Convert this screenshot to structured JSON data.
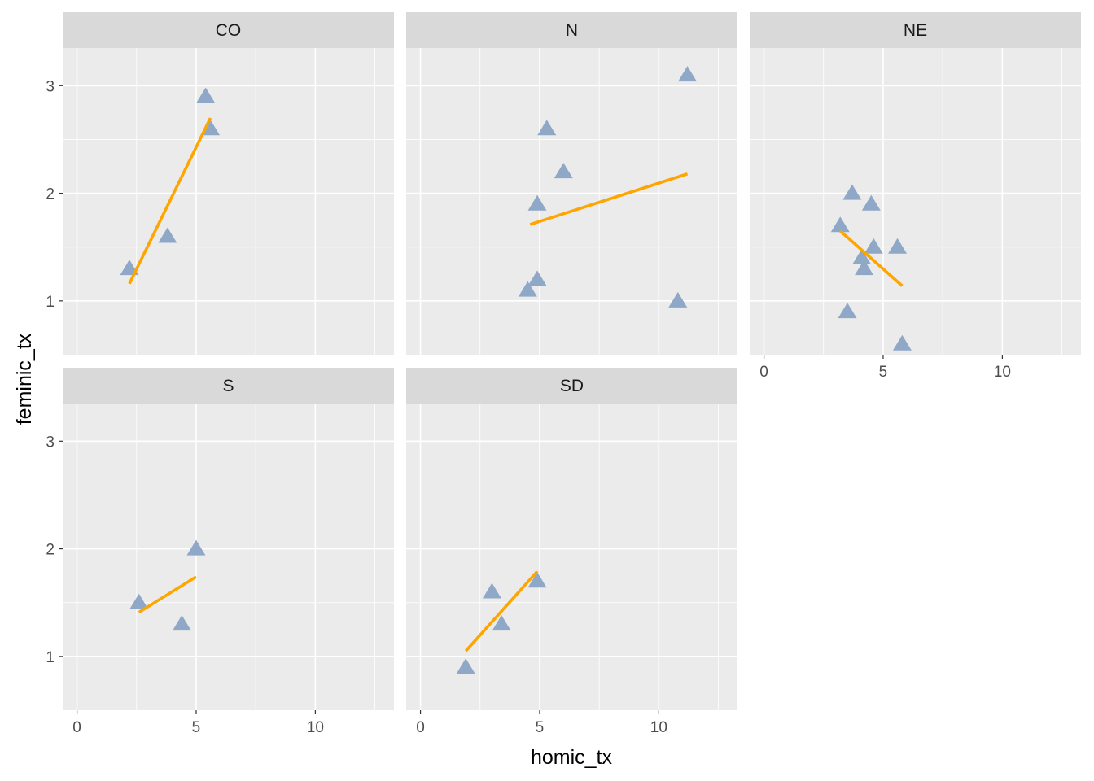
{
  "chart_data": {
    "type": "scatter",
    "title": "",
    "xlabel": "homic_tx",
    "ylabel": "feminic_tx",
    "xlim": [
      -0.6,
      13.3
    ],
    "ylim": [
      0.5,
      3.35
    ],
    "x_ticks": [
      0,
      5,
      10
    ],
    "y_ticks": [
      1,
      2,
      3
    ],
    "x_tick_labels": [
      "0",
      "5",
      "10"
    ],
    "y_tick_labels": [
      "1",
      "2",
      "3"
    ],
    "grid": true,
    "marker": "triangle",
    "point_color": "#8fa8c8",
    "line_color": "#ffa500",
    "panel_background": "#ebebeb",
    "strip_background": "#d9d9d9",
    "facets": [
      {
        "label": "CO",
        "points": [
          [
            2.2,
            1.3
          ],
          [
            3.8,
            1.6
          ],
          [
            5.4,
            2.9
          ],
          [
            5.6,
            2.6
          ]
        ],
        "fit": [
          [
            2.2,
            1.16
          ],
          [
            5.6,
            2.7
          ]
        ]
      },
      {
        "label": "N",
        "points": [
          [
            4.5,
            1.1
          ],
          [
            4.9,
            1.9
          ],
          [
            4.9,
            1.2
          ],
          [
            5.3,
            2.6
          ],
          [
            6.0,
            2.2
          ],
          [
            10.8,
            1.0
          ],
          [
            11.2,
            3.1
          ]
        ],
        "fit": [
          [
            4.6,
            1.71
          ],
          [
            11.2,
            2.18
          ]
        ]
      },
      {
        "label": "NE",
        "points": [
          [
            3.2,
            1.7
          ],
          [
            3.5,
            0.9
          ],
          [
            3.7,
            2.0
          ],
          [
            4.1,
            1.4
          ],
          [
            4.2,
            1.3
          ],
          [
            4.5,
            1.9
          ],
          [
            4.6,
            1.5
          ],
          [
            5.6,
            1.5
          ],
          [
            5.8,
            0.6
          ]
        ],
        "fit": [
          [
            3.2,
            1.65
          ],
          [
            5.8,
            1.14
          ]
        ]
      },
      {
        "label": "S",
        "points": [
          [
            2.6,
            1.5
          ],
          [
            4.4,
            1.3
          ],
          [
            5.0,
            2.0
          ]
        ],
        "fit": [
          [
            2.6,
            1.41
          ],
          [
            5.0,
            1.74
          ]
        ]
      },
      {
        "label": "SD",
        "points": [
          [
            1.9,
            0.9
          ],
          [
            3.0,
            1.6
          ],
          [
            3.4,
            1.3
          ],
          [
            4.9,
            1.7
          ]
        ],
        "fit": [
          [
            1.9,
            1.05
          ],
          [
            4.9,
            1.79
          ]
        ]
      }
    ]
  }
}
